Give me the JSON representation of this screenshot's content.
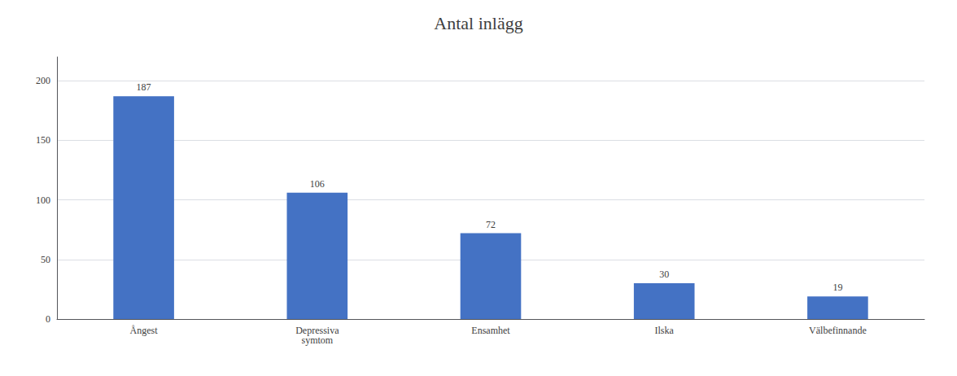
{
  "chart_data": {
    "type": "bar",
    "title": "Antal inlägg",
    "categories": [
      "Ångest",
      "Depressiva\nsymtom",
      "Ensamhet",
      "Ilska",
      "Välbefinnande"
    ],
    "values": [
      187,
      106,
      72,
      30,
      19
    ],
    "color": "#4472C4",
    "ylim": [
      0,
      220
    ],
    "yticks": [
      0,
      50,
      100,
      150,
      200
    ],
    "grid": true,
    "data_labels": true
  }
}
